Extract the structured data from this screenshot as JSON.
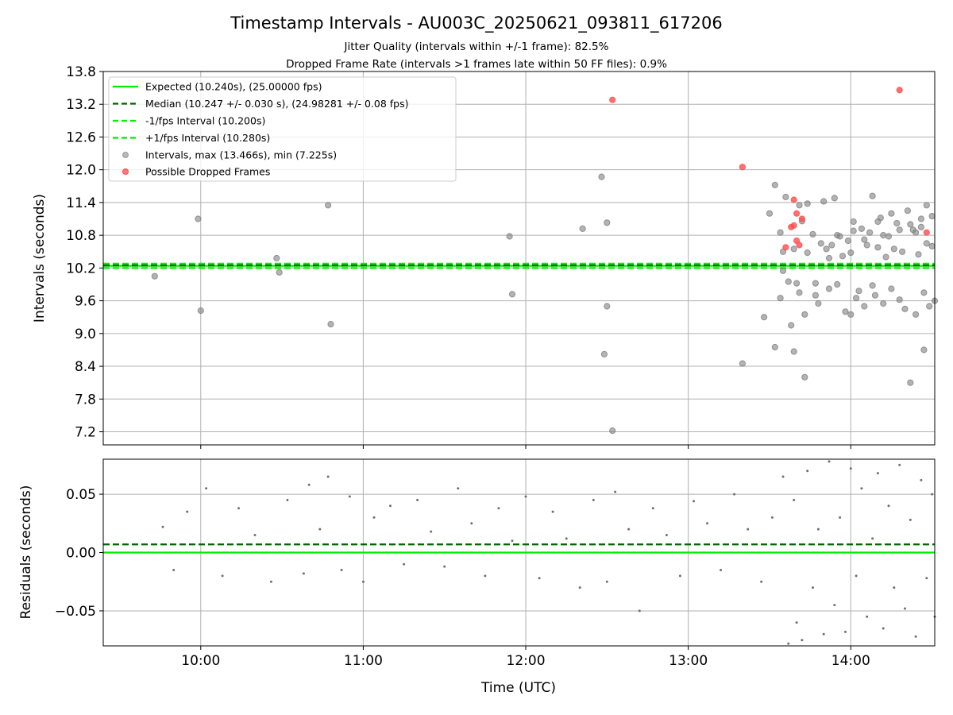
{
  "chart_data": [
    {
      "type": "scatter",
      "title": "Timestamp Intervals - AU003C_20250621_093811_617206",
      "subtitle_lines": [
        "Jitter Quality (intervals within +/-1 frame): 82.5%",
        "Dropped Frame Rate (intervals >1 frames late within 50 FF files): 0.9%"
      ],
      "xlabel": "",
      "ylabel": "Intervals (seconds)",
      "xlim": [
        "09:24",
        "14:31"
      ],
      "ylim": [
        6.96,
        13.8
      ],
      "y_ticks": [
        7.2,
        7.8,
        8.4,
        9.0,
        9.6,
        10.2,
        10.8,
        11.4,
        12.0,
        12.6,
        13.2,
        13.8
      ],
      "y_tick_labels": [
        "7.2",
        "7.8",
        "8.4",
        "9.0",
        "9.6",
        "10.2",
        "10.8",
        "11.4",
        "12.0",
        "12.6",
        "13.2",
        "13.8"
      ],
      "grid": true,
      "legend_position": "top-left",
      "legend": [
        "Expected (10.240s), (25.00000 fps)",
        "Median (10.247 +/- 0.030 s), (24.98281 +/- 0.08 fps)",
        "-1/fps Interval (10.200s)",
        "+1/fps Interval (10.280s)",
        "Intervals, max (13.466s), min (7.225s)",
        "Possible Dropped Frames"
      ],
      "reference_lines": [
        {
          "name": "Expected",
          "y": 10.24,
          "style": "solid",
          "color": "#00ee00"
        },
        {
          "name": "Median",
          "y": 10.247,
          "style": "dashed",
          "color": "#006400"
        },
        {
          "name": "-1/fps Interval",
          "y": 10.2,
          "style": "dashed",
          "color": "#00ee00"
        },
        {
          "name": "+1/fps Interval",
          "y": 10.28,
          "style": "dashed",
          "color": "#00ee00"
        }
      ],
      "series": [
        {
          "name": "Intervals",
          "color": "#808080",
          "points": [
            [
              "09:43",
              10.05
            ],
            [
              "09:59",
              11.1
            ],
            [
              "10:00",
              9.42
            ],
            [
              "10:28",
              10.38
            ],
            [
              "10:29",
              10.12
            ],
            [
              "10:47",
              11.35
            ],
            [
              "10:48",
              9.17
            ],
            [
              "11:54",
              10.78
            ],
            [
              "11:55",
              9.72
            ],
            [
              "12:21",
              10.92
            ],
            [
              "12:28",
              11.87
            ],
            [
              "12:29",
              8.62
            ],
            [
              "12:30",
              11.03
            ],
            [
              "12:30",
              9.5
            ],
            [
              "12:32",
              7.22
            ],
            [
              "13:20",
              8.45
            ],
            [
              "13:28",
              9.3
            ],
            [
              "13:32",
              8.75
            ],
            [
              "13:30",
              11.2
            ],
            [
              "13:32",
              11.72
            ],
            [
              "13:35",
              10.5
            ],
            [
              "13:34",
              10.85
            ],
            [
              "13:34",
              9.65
            ],
            [
              "13:36",
              11.5
            ],
            [
              "13:38",
              9.15
            ],
            [
              "13:39",
              8.67
            ],
            [
              "13:40",
              9.92
            ],
            [
              "13:41",
              11.35
            ],
            [
              "13:42",
              11.06
            ],
            [
              "13:43",
              8.2
            ],
            [
              "13:43",
              9.35
            ],
            [
              "13:44",
              11.38
            ],
            [
              "13:46",
              10.82
            ],
            [
              "13:47",
              9.7
            ],
            [
              "13:48",
              9.55
            ],
            [
              "13:50",
              11.42
            ],
            [
              "13:51",
              10.55
            ],
            [
              "13:52",
              9.82
            ],
            [
              "13:53",
              10.62
            ],
            [
              "13:54",
              11.48
            ],
            [
              "13:55",
              9.9
            ],
            [
              "13:56",
              10.78
            ],
            [
              "13:58",
              9.4
            ],
            [
              "13:59",
              10.7
            ],
            [
              "14:00",
              9.35
            ],
            [
              "14:00",
              10.48
            ],
            [
              "14:01",
              11.05
            ],
            [
              "14:02",
              9.65
            ],
            [
              "14:04",
              10.92
            ],
            [
              "14:05",
              9.5
            ],
            [
              "14:06",
              10.62
            ],
            [
              "14:07",
              10.85
            ],
            [
              "14:08",
              11.52
            ],
            [
              "14:09",
              9.7
            ],
            [
              "14:10",
              10.58
            ],
            [
              "14:11",
              11.12
            ],
            [
              "14:12",
              9.55
            ],
            [
              "14:13",
              10.4
            ],
            [
              "14:14",
              10.78
            ],
            [
              "14:15",
              9.82
            ],
            [
              "14:16",
              10.55
            ],
            [
              "14:17",
              11.02
            ],
            [
              "14:18",
              9.62
            ],
            [
              "14:19",
              10.5
            ],
            [
              "14:20",
              9.45
            ],
            [
              "14:21",
              11.25
            ],
            [
              "14:22",
              8.1
            ],
            [
              "14:23",
              10.9
            ],
            [
              "14:24",
              9.35
            ],
            [
              "14:25",
              10.45
            ],
            [
              "14:26",
              11.1
            ],
            [
              "14:27",
              9.75
            ],
            [
              "14:28",
              10.65
            ],
            [
              "14:29",
              9.5
            ],
            [
              "14:30",
              11.15
            ],
            [
              "14:30",
              10.6
            ],
            [
              "14:31",
              9.6
            ],
            [
              "14:27",
              8.7
            ],
            [
              "14:28",
              11.35
            ],
            [
              "14:26",
              10.95
            ],
            [
              "14:24",
              10.85
            ],
            [
              "14:22",
              11.0
            ],
            [
              "14:18",
              10.9
            ],
            [
              "14:15",
              11.2
            ],
            [
              "14:12",
              10.8
            ],
            [
              "14:10",
              11.05
            ],
            [
              "14:08",
              9.88
            ],
            [
              "14:05",
              10.72
            ],
            [
              "14:03",
              9.78
            ],
            [
              "14:01",
              10.88
            ],
            [
              "13:57",
              10.42
            ],
            [
              "13:55",
              10.8
            ],
            [
              "13:52",
              10.38
            ],
            [
              "13:49",
              10.65
            ],
            [
              "13:47",
              9.92
            ],
            [
              "13:44",
              10.48
            ],
            [
              "13:41",
              9.75
            ],
            [
              "13:39",
              10.55
            ],
            [
              "13:37",
              9.95
            ],
            [
              "13:35",
              10.15
            ]
          ]
        },
        {
          "name": "Possible Dropped Frames",
          "color": "#ff4c4c",
          "points": [
            [
              "12:32",
              13.28
            ],
            [
              "13:20",
              12.05
            ],
            [
              "13:38",
              10.95
            ],
            [
              "13:39",
              10.98
            ],
            [
              "13:39",
              11.45
            ],
            [
              "13:40",
              11.2
            ],
            [
              "13:40",
              10.7
            ],
            [
              "13:41",
              10.62
            ],
            [
              "13:42",
              11.1
            ],
            [
              "13:36",
              10.58
            ],
            [
              "14:18",
              13.46
            ],
            [
              "14:28",
              10.85
            ]
          ]
        }
      ]
    },
    {
      "type": "scatter",
      "title": "",
      "xlabel": "Time (UTC)",
      "ylabel": "Residuals (seconds)",
      "xlim": [
        "09:24",
        "14:31"
      ],
      "ylim": [
        -0.08,
        0.08
      ],
      "x_ticks": [
        "10:00",
        "11:00",
        "12:00",
        "13:00",
        "14:00"
      ],
      "x_tick_labels": [
        "10:00",
        "11:00",
        "12:00",
        "13:00",
        "14:00"
      ],
      "y_ticks": [
        -0.05,
        0.0,
        0.05
      ],
      "y_tick_labels": [
        "−0.05",
        "0.00",
        "0.05"
      ],
      "grid": true,
      "reference_lines": [
        {
          "name": "Expected",
          "y": 0.0,
          "style": "solid",
          "color": "#00ee00"
        },
        {
          "name": "Median",
          "y": 0.007,
          "style": "dashed",
          "color": "#006400"
        }
      ],
      "series": [
        {
          "name": "Residuals",
          "color": "#707070",
          "points": [
            [
              "09:46",
              0.022
            ],
            [
              "09:50",
              -0.015
            ],
            [
              "09:55",
              0.035
            ],
            [
              "10:02",
              0.055
            ],
            [
              "10:08",
              -0.02
            ],
            [
              "10:14",
              0.038
            ],
            [
              "10:20",
              0.015
            ],
            [
              "10:26",
              -0.025
            ],
            [
              "10:32",
              0.045
            ],
            [
              "10:38",
              -0.018
            ],
            [
              "10:40",
              0.058
            ],
            [
              "10:44",
              0.02
            ],
            [
              "10:47",
              0.065
            ],
            [
              "10:52",
              -0.015
            ],
            [
              "10:55",
              0.048
            ],
            [
              "11:00",
              -0.025
            ],
            [
              "11:04",
              0.03
            ],
            [
              "11:10",
              0.04
            ],
            [
              "11:15",
              -0.01
            ],
            [
              "11:20",
              0.045
            ],
            [
              "11:25",
              0.018
            ],
            [
              "11:30",
              -0.012
            ],
            [
              "11:35",
              0.055
            ],
            [
              "11:40",
              0.025
            ],
            [
              "11:45",
              -0.02
            ],
            [
              "11:50",
              0.038
            ],
            [
              "11:55",
              0.01
            ],
            [
              "12:00",
              0.048
            ],
            [
              "12:05",
              -0.022
            ],
            [
              "12:10",
              0.035
            ],
            [
              "12:15",
              0.012
            ],
            [
              "12:20",
              -0.03
            ],
            [
              "12:25",
              0.045
            ],
            [
              "12:30",
              -0.025
            ],
            [
              "12:33",
              0.052
            ],
            [
              "12:38",
              0.02
            ],
            [
              "12:42",
              -0.05
            ],
            [
              "12:47",
              0.038
            ],
            [
              "12:52",
              0.015
            ],
            [
              "12:57",
              -0.02
            ],
            [
              "13:02",
              0.044
            ],
            [
              "13:07",
              0.025
            ],
            [
              "13:12",
              -0.015
            ],
            [
              "13:17",
              0.05
            ],
            [
              "13:22",
              0.02
            ],
            [
              "13:27",
              -0.025
            ],
            [
              "13:31",
              0.03
            ],
            [
              "13:35",
              0.065
            ],
            [
              "13:37",
              -0.078
            ],
            [
              "13:39",
              0.045
            ],
            [
              "13:40",
              -0.06
            ],
            [
              "13:42",
              -0.075
            ],
            [
              "13:44",
              0.07
            ],
            [
              "13:46",
              -0.03
            ],
            [
              "13:48",
              0.02
            ],
            [
              "13:50",
              -0.07
            ],
            [
              "13:52",
              0.078
            ],
            [
              "13:54",
              -0.045
            ],
            [
              "13:56",
              0.03
            ],
            [
              "13:58",
              -0.068
            ],
            [
              "14:00",
              0.072
            ],
            [
              "14:02",
              -0.02
            ],
            [
              "14:04",
              0.055
            ],
            [
              "14:06",
              -0.055
            ],
            [
              "14:08",
              0.012
            ],
            [
              "14:10",
              0.068
            ],
            [
              "14:12",
              -0.065
            ],
            [
              "14:14",
              0.04
            ],
            [
              "14:16",
              -0.03
            ],
            [
              "14:18",
              0.075
            ],
            [
              "14:20",
              -0.048
            ],
            [
              "14:22",
              0.028
            ],
            [
              "14:24",
              -0.072
            ],
            [
              "14:26",
              0.062
            ],
            [
              "14:28",
              -0.022
            ],
            [
              "14:30",
              0.05
            ],
            [
              "14:31",
              -0.055
            ]
          ]
        }
      ]
    }
  ]
}
